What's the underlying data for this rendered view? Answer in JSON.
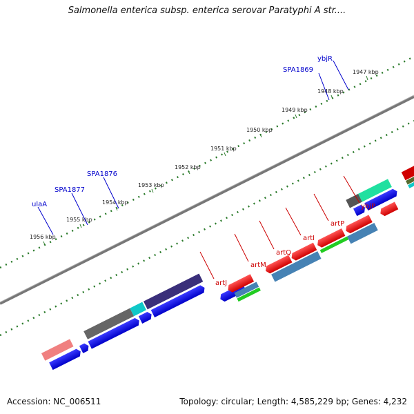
{
  "title": "Salmonella enterica subsp. enterica serovar Paratyphi A str....",
  "footer": {
    "accession": "Accession: NC_006511",
    "topology": "Topology: circular; Length: 4,585,229 bp; Genes: 4,232"
  },
  "ticks": [
    "1947 kbp",
    "1948 kbp",
    "1949 kbp",
    "1950 kbp",
    "1951 kbp",
    "1952 kbp",
    "1953 kbp",
    "1954 kbp",
    "1955 kbp",
    "1956 kbp"
  ],
  "genes_top": [
    "ybjR",
    "SPA1869",
    "SPA1876",
    "SPA1877",
    "ulaA"
  ],
  "genes_bottom": [
    "ybjP",
    "artP",
    "artI",
    "artQ",
    "artM",
    "artJ"
  ],
  "colors": {
    "label_top": "#0000cc",
    "label_bottom": "#cc0000",
    "backbone": "#777777",
    "tick": "#2a7a2a"
  }
}
